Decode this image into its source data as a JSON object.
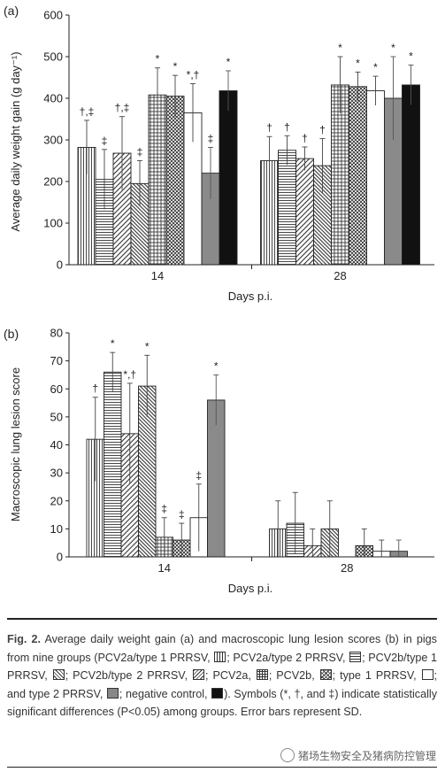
{
  "chart_data": [
    {
      "type": "bar",
      "panel_label": "(a)",
      "ylabel": "Average daily weight gain (g day⁻¹)",
      "xlabel": "Days p.i.",
      "categories": [
        "14",
        "28"
      ],
      "ylim": [
        0,
        600
      ],
      "yticks": [
        "0",
        "100",
        "200",
        "300",
        "400",
        "500",
        "600"
      ],
      "series": [
        {
          "pattern": "vertical",
          "values": [
            282,
            250
          ],
          "errors": [
            65,
            58
          ],
          "symbols": [
            "†,‡",
            "†"
          ]
        },
        {
          "pattern": "horizontal",
          "values": [
            205,
            275
          ],
          "errors": [
            72,
            35
          ],
          "symbols": [
            "‡",
            "†"
          ]
        },
        {
          "pattern": "diagonal",
          "values": [
            268,
            255
          ],
          "errors": [
            88,
            28
          ],
          "symbols": [
            "†,‡",
            "†"
          ]
        },
        {
          "pattern": "diagonal2",
          "values": [
            195,
            238
          ],
          "errors": [
            55,
            65
          ],
          "symbols": [
            "‡",
            "†"
          ]
        },
        {
          "pattern": "grid",
          "values": [
            408,
            432
          ],
          "errors": [
            65,
            68
          ],
          "symbols": [
            "*",
            "*"
          ]
        },
        {
          "pattern": "crosshatch",
          "values": [
            405,
            428
          ],
          "errors": [
            50,
            35
          ],
          "symbols": [
            "*",
            "*"
          ]
        },
        {
          "pattern": "white",
          "values": [
            365,
            418
          ],
          "errors": [
            70,
            35
          ],
          "symbols": [
            "*,†",
            "*"
          ]
        },
        {
          "pattern": "gray",
          "values": [
            220,
            400
          ],
          "errors": [
            62,
            100
          ],
          "symbols": [
            "‡",
            "*"
          ]
        },
        {
          "pattern": "black",
          "values": [
            418,
            432
          ],
          "errors": [
            48,
            48
          ],
          "symbols": [
            "*",
            "*"
          ]
        }
      ]
    },
    {
      "type": "bar",
      "panel_label": "(b)",
      "ylabel": "Macroscopic lung lesion score",
      "xlabel": "Days p.i.",
      "categories": [
        "14",
        "28"
      ],
      "ylim": [
        0,
        80
      ],
      "yticks": [
        "0",
        "10",
        "20",
        "30",
        "40",
        "50",
        "60",
        "70",
        "80"
      ],
      "series": [
        {
          "pattern": "vertical",
          "values": [
            42,
            10
          ],
          "errors": [
            15,
            10
          ],
          "symbols": [
            "†",
            ""
          ]
        },
        {
          "pattern": "horizontal",
          "values": [
            66,
            12
          ],
          "errors": [
            7,
            11
          ],
          "symbols": [
            "*",
            ""
          ]
        },
        {
          "pattern": "diagonal",
          "values": [
            44,
            4
          ],
          "errors": [
            18,
            6
          ],
          "symbols": [
            "*,†",
            ""
          ]
        },
        {
          "pattern": "diagonal2",
          "values": [
            61,
            10
          ],
          "errors": [
            11,
            10
          ],
          "symbols": [
            "*",
            ""
          ]
        },
        {
          "pattern": "grid",
          "values": [
            7,
            0
          ],
          "errors": [
            7,
            0
          ],
          "symbols": [
            "‡",
            ""
          ]
        },
        {
          "pattern": "crosshatch",
          "values": [
            6,
            4
          ],
          "errors": [
            6,
            6
          ],
          "symbols": [
            "‡",
            ""
          ]
        },
        {
          "pattern": "white",
          "values": [
            14,
            2
          ],
          "errors": [
            12,
            4
          ],
          "symbols": [
            "‡",
            ""
          ]
        },
        {
          "pattern": "gray",
          "values": [
            56,
            2
          ],
          "errors": [
            9,
            4
          ],
          "symbols": [
            "*",
            ""
          ]
        },
        {
          "pattern": "black",
          "values": [
            0,
            0
          ],
          "errors": [
            0,
            0
          ],
          "symbols": [
            "",
            ""
          ]
        }
      ]
    }
  ],
  "caption": {
    "fig_label": "Fig. 2.",
    "text_1": "Average daily weight gain (a) and macroscopic lung lesion scores (b) in pigs from nine groups (PCV2a/type 1 PRRSV,",
    "text_2": "; PCV2a/type 2 PRRSV,",
    "text_3": "; PCV2b/type 1 PRRSV,",
    "text_4": "; PCV2b/type 2 PRRSV,",
    "text_5": "; PCV2a,",
    "text_6": "; PCV2b,",
    "text_7": "; type 1 PRRSV,",
    "text_8": "; and type 2 PRRSV,",
    "text_9": "; negative control,",
    "text_10": "). Symbols (*, †, and ‡) indicate statistically significant differences (P<0.05) among groups. Error bars represent SD."
  },
  "watermark": "猪场生物安全及猪病防控管理"
}
